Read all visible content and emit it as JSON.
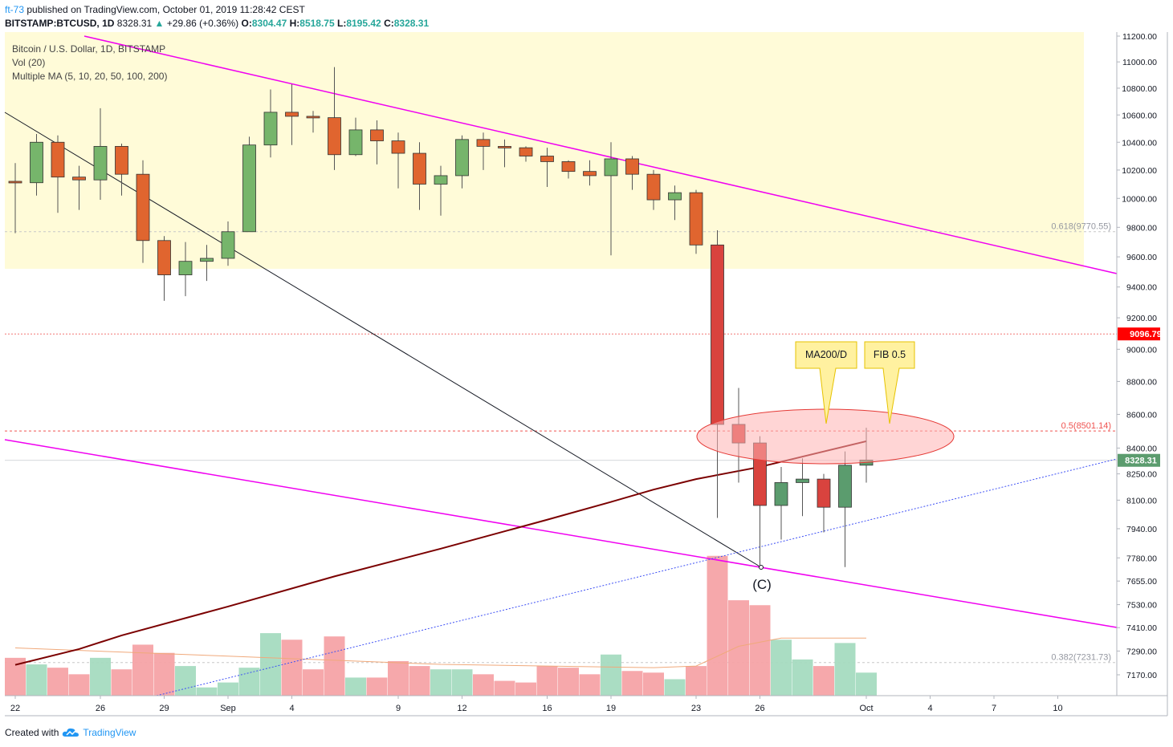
{
  "header": {
    "user": "ft-73",
    "published_text": "published on TradingView.com, October 01, 2019 11:28:42 CEST",
    "symbol": "BITSTAMP:BTCUSD, 1D",
    "last": "8328.31",
    "change_arrow": "▲",
    "change": "+29.86 (+0.36%)",
    "o_label": "O:",
    "o": "8304.47",
    "h_label": "H:",
    "h": "8518.75",
    "l_label": "L:",
    "l": "8195.42",
    "c_label": "C:",
    "c": "8328.31"
  },
  "legend": {
    "title": "Bitcoin / U.S. Dollar, 1D, BITSTAMP",
    "vol": "Vol (20)",
    "ma": "Multiple MA (5, 10, 20, 50, 100, 200)"
  },
  "footer": {
    "created_with": "Created with",
    "brand": "TradingView",
    "brand_icon": "tradingview-cloud-icon"
  },
  "chart_data": {
    "type": "candlestick",
    "scale": "log",
    "ylim": [
      7080,
      11280
    ],
    "y_ticks": [
      "11200.00",
      "11000.00",
      "10800.00",
      "10600.00",
      "10400.00",
      "10200.00",
      "10000.00",
      "9800.00",
      "9600.00",
      "9400.00",
      "9200.00",
      "9000.00",
      "8800.00",
      "8600.00",
      "8400.00",
      "8250.00",
      "8100.00",
      "7940.00",
      "7780.00",
      "7655.00",
      "7530.00",
      "7410.00",
      "7290.00",
      "7170.00"
    ],
    "y_tick_values": [
      11200,
      11000,
      10800,
      10600,
      10400,
      10200,
      10000,
      9800,
      9600,
      9400,
      9200,
      9000,
      8800,
      8600,
      8400,
      8250,
      8100,
      7940,
      7780,
      7655,
      7530,
      7410,
      7290,
      7170
    ],
    "x_ticks": [
      {
        "label": "22",
        "day": 0
      },
      {
        "label": "26",
        "day": 4
      },
      {
        "label": "29",
        "day": 7
      },
      {
        "label": "Sep",
        "day": 10
      },
      {
        "label": "4",
        "day": 13
      },
      {
        "label": "9",
        "day": 18
      },
      {
        "label": "12",
        "day": 21
      },
      {
        "label": "16",
        "day": 25
      },
      {
        "label": "19",
        "day": 28
      },
      {
        "label": "23",
        "day": 32
      },
      {
        "label": "26",
        "day": 35
      },
      {
        "label": "Oct",
        "day": 40
      },
      {
        "label": "4",
        "day": 43
      },
      {
        "label": "7",
        "day": 46
      },
      {
        "label": "10",
        "day": 49
      }
    ],
    "candles": [
      {
        "day": 0,
        "o": 10120,
        "h": 10250,
        "l": 9760,
        "c": 10110
      },
      {
        "day": 1,
        "o": 10110,
        "h": 10460,
        "l": 10020,
        "c": 10400
      },
      {
        "day": 2,
        "o": 10400,
        "h": 10450,
        "l": 9900,
        "c": 10150
      },
      {
        "day": 3,
        "o": 10150,
        "h": 10230,
        "l": 9920,
        "c": 10130
      },
      {
        "day": 4,
        "o": 10130,
        "h": 10650,
        "l": 9990,
        "c": 10370
      },
      {
        "day": 5,
        "o": 10370,
        "h": 10390,
        "l": 10020,
        "c": 10170
      },
      {
        "day": 6,
        "o": 10170,
        "h": 10270,
        "l": 9560,
        "c": 9710
      },
      {
        "day": 7,
        "o": 9710,
        "h": 9740,
        "l": 9310,
        "c": 9480
      },
      {
        "day": 8,
        "o": 9480,
        "h": 9700,
        "l": 9340,
        "c": 9570
      },
      {
        "day": 9,
        "o": 9570,
        "h": 9680,
        "l": 9440,
        "c": 9590
      },
      {
        "day": 10,
        "o": 9590,
        "h": 9840,
        "l": 9540,
        "c": 9770
      },
      {
        "day": 11,
        "o": 9770,
        "h": 10440,
        "l": 9770,
        "c": 10380
      },
      {
        "day": 12,
        "o": 10380,
        "h": 10790,
        "l": 10290,
        "c": 10620
      },
      {
        "day": 13,
        "o": 10620,
        "h": 10830,
        "l": 10380,
        "c": 10590
      },
      {
        "day": 14,
        "o": 10590,
        "h": 10630,
        "l": 10470,
        "c": 10580
      },
      {
        "day": 15,
        "o": 10580,
        "h": 10960,
        "l": 10200,
        "c": 10310
      },
      {
        "day": 16,
        "o": 10310,
        "h": 10580,
        "l": 10300,
        "c": 10490
      },
      {
        "day": 17,
        "o": 10490,
        "h": 10560,
        "l": 10240,
        "c": 10410
      },
      {
        "day": 18,
        "o": 10410,
        "h": 10470,
        "l": 10070,
        "c": 10320
      },
      {
        "day": 19,
        "o": 10320,
        "h": 10400,
        "l": 9920,
        "c": 10100
      },
      {
        "day": 20,
        "o": 10100,
        "h": 10230,
        "l": 9880,
        "c": 10160
      },
      {
        "day": 21,
        "o": 10160,
        "h": 10450,
        "l": 10070,
        "c": 10420
      },
      {
        "day": 22,
        "o": 10420,
        "h": 10470,
        "l": 10200,
        "c": 10370
      },
      {
        "day": 23,
        "o": 10370,
        "h": 10420,
        "l": 10220,
        "c": 10360
      },
      {
        "day": 24,
        "o": 10360,
        "h": 10370,
        "l": 10260,
        "c": 10300
      },
      {
        "day": 25,
        "o": 10300,
        "h": 10360,
        "l": 10080,
        "c": 10260
      },
      {
        "day": 26,
        "o": 10260,
        "h": 10270,
        "l": 10140,
        "c": 10190
      },
      {
        "day": 27,
        "o": 10190,
        "h": 10270,
        "l": 10090,
        "c": 10160
      },
      {
        "day": 28,
        "o": 10160,
        "h": 10400,
        "l": 9610,
        "c": 10280
      },
      {
        "day": 29,
        "o": 10280,
        "h": 10300,
        "l": 10060,
        "c": 10170
      },
      {
        "day": 30,
        "o": 10170,
        "h": 10200,
        "l": 9920,
        "c": 9990
      },
      {
        "day": 31,
        "o": 9990,
        "h": 10090,
        "l": 9850,
        "c": 10040
      },
      {
        "day": 32,
        "o": 10040,
        "h": 10060,
        "l": 9620,
        "c": 9680
      },
      {
        "day": 33,
        "o": 9680,
        "h": 9780,
        "l": 8000,
        "c": 8540
      },
      {
        "day": 34,
        "o": 8540,
        "h": 8760,
        "l": 8200,
        "c": 8430
      },
      {
        "day": 35,
        "o": 8430,
        "h": 8470,
        "l": 7740,
        "c": 8070
      },
      {
        "day": 36,
        "o": 8070,
        "h": 8290,
        "l": 7880,
        "c": 8200
      },
      {
        "day": 37,
        "o": 8200,
        "h": 8340,
        "l": 8010,
        "c": 8220
      },
      {
        "day": 38,
        "o": 8220,
        "h": 8250,
        "l": 7920,
        "c": 8060
      },
      {
        "day": 39,
        "o": 8060,
        "h": 8380,
        "l": 7730,
        "c": 8300
      },
      {
        "day": 40,
        "o": 8300,
        "h": 8520,
        "l": 8200,
        "c": 8330
      }
    ],
    "volume": [
      23,
      19,
      17,
      13,
      23,
      16,
      31,
      26,
      18,
      5,
      8,
      17,
      38,
      34,
      16,
      36,
      11,
      11,
      21,
      18,
      16,
      16,
      13,
      9,
      8,
      18,
      17,
      13,
      25,
      15,
      14,
      10,
      18,
      85,
      58,
      55,
      34,
      22,
      18,
      32,
      14
    ],
    "volume_max": 100,
    "ma200": [
      [
        0,
        7220
      ],
      [
        3,
        7300
      ],
      [
        5,
        7370
      ],
      [
        10,
        7520
      ],
      [
        15,
        7680
      ],
      [
        20,
        7830
      ],
      [
        25,
        7990
      ],
      [
        28,
        8090
      ],
      [
        30,
        8160
      ],
      [
        32,
        8220
      ],
      [
        35,
        8290
      ],
      [
        38,
        8380
      ],
      [
        40,
        8440
      ]
    ],
    "ma200_label": "MA200/D",
    "volume_ma": [
      [
        0,
        29
      ],
      [
        10,
        24
      ],
      [
        20,
        19
      ],
      [
        30,
        17
      ],
      [
        32,
        18
      ],
      [
        34,
        30
      ],
      [
        36,
        35
      ],
      [
        38,
        35
      ],
      [
        40,
        35
      ]
    ],
    "fib_levels": [
      {
        "label": "0.618(9770.55)",
        "value": 9770.55,
        "color": "#c7c7c7"
      },
      {
        "label": "0.5(8501.14)",
        "value": 8501.14,
        "color": "#ef5350"
      },
      {
        "label": "0.382(7231.73)",
        "value": 7231.73,
        "color": "#c7c7c7"
      }
    ],
    "fib_callout": "FIB 0.5",
    "horizontal_line": {
      "value": 9096.79,
      "label": "9096.79"
    },
    "last_price": {
      "value": 8328.31,
      "label": "8328.31"
    },
    "wave_label": "(C)",
    "zone": {
      "from": 9520,
      "to": 11280
    }
  }
}
